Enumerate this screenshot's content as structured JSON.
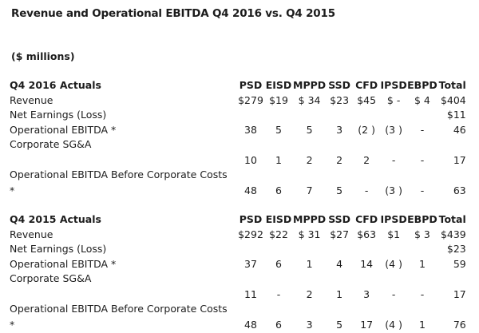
{
  "title": "Revenue and Operational EBITDA Q4 2016 vs. Q4 2015",
  "units": "($ millions)",
  "columns": [
    "PSD",
    "EISD",
    "MPPD",
    "SSD",
    "CFD",
    "IPSD",
    "EBPD",
    "Total"
  ],
  "q4_2016": {
    "section_label": "Q4 2016 Actuals",
    "rows": [
      {
        "label": "Revenue",
        "values": [
          "$279",
          "$19",
          "$ 34",
          "$23",
          "$45",
          "$ -",
          "$ 4",
          "$404"
        ]
      },
      {
        "label": "Net Earnings (Loss)",
        "values": [
          "",
          "",
          "",
          "",
          "",
          "",
          "",
          "$11"
        ]
      },
      {
        "label": "Operational EBITDA *",
        "values": [
          "38",
          "5",
          "5",
          "3",
          "(2 )",
          "(3 )",
          "-",
          "46"
        ]
      },
      {
        "label": "Corporate SG&A",
        "values": [
          "",
          "",
          "",
          "",
          "",
          "",
          "",
          ""
        ]
      },
      {
        "label": "",
        "values": [
          "10",
          "1",
          "2",
          "2",
          "2",
          "-",
          "-",
          "17"
        ]
      },
      {
        "label": "Operational EBITDA Before Corporate Costs",
        "values": [
          "",
          "",
          "",
          "",
          "",
          "",
          "",
          ""
        ]
      },
      {
        "label": "*",
        "values": [
          "48",
          "6",
          "7",
          "5",
          "-",
          "(3 )",
          "-",
          "63"
        ]
      }
    ]
  },
  "q4_2015": {
    "section_label": "Q4 2015 Actuals",
    "rows": [
      {
        "label": "Revenue",
        "values": [
          "$292",
          "$22",
          "$ 31",
          "$27",
          "$63",
          "$1",
          "$ 3",
          "$439"
        ]
      },
      {
        "label": "Net Earnings (Loss)",
        "values": [
          "",
          "",
          "",
          "",
          "",
          "",
          "",
          "$23"
        ]
      },
      {
        "label": "Operational EBITDA *",
        "values": [
          "37",
          "6",
          "1",
          "4",
          "14",
          "(4 )",
          "1",
          "59"
        ]
      },
      {
        "label": "Corporate SG&A",
        "values": [
          "",
          "",
          "",
          "",
          "",
          "",
          "",
          ""
        ]
      },
      {
        "label": "",
        "values": [
          "11",
          "-",
          "2",
          "1",
          "3",
          "-",
          "-",
          "17"
        ]
      },
      {
        "label": "Operational EBITDA Before Corporate Costs",
        "values": [
          "",
          "",
          "",
          "",
          "",
          "",
          "",
          ""
        ]
      },
      {
        "label": "*",
        "values": [
          "48",
          "6",
          "3",
          "5",
          "17",
          "(4 )",
          "1",
          "76"
        ]
      }
    ]
  }
}
